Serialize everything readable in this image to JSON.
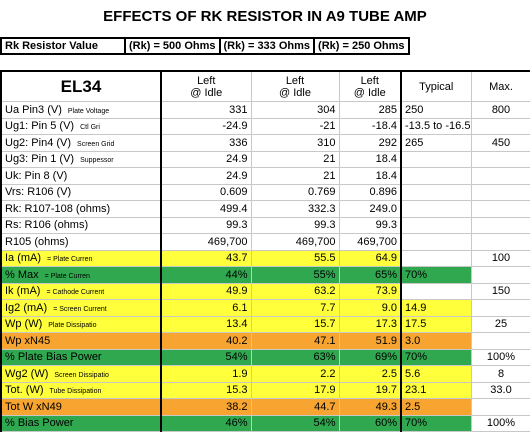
{
  "title": "EFFECTS OF RK RESISTOR IN A9 TUBE AMP",
  "summary": {
    "label": "Rk Resistor Value",
    "values": [
      "(Rk) = 500 Ohms",
      "(Rk) = 333 Ohms",
      "(Rk) = 250 Ohms"
    ]
  },
  "table": {
    "header": {
      "tube": "EL34",
      "columns": [
        [
          "Left",
          "@ Idle"
        ],
        [
          "Left",
          "@ Idle"
        ],
        [
          "Left",
          "@ Idle"
        ]
      ],
      "typical": "Typical",
      "max": "Max."
    },
    "rows": [
      {
        "label": "Ua Pin3 (V)",
        "note": "Plate Voltage",
        "values": [
          "331",
          "304",
          "285"
        ],
        "typical": "250",
        "max": "800"
      },
      {
        "label": "Ug1: Pin 5 (V)",
        "note": "Ctl Gri",
        "values": [
          "-24.9",
          "-21",
          "-18.4"
        ],
        "typical": "-13.5 to -16.5"
      },
      {
        "label": "Ug2: Pin4 (V)",
        "note": "Screen Grid",
        "values": [
          "336",
          "310",
          "292"
        ],
        "typical": "265",
        "max": "450"
      },
      {
        "label": "Ug3: Pin 1 (V)",
        "note": "Suppessor",
        "values": [
          "24.9",
          "21",
          "18.4"
        ]
      },
      {
        "label": "Uk: Pin 8 (V)",
        "values": [
          "24.9",
          "21",
          "18.4"
        ]
      },
      {
        "label": "Vrs: R106 (V)",
        "values": [
          "0.609",
          "0.769",
          "0.896"
        ]
      },
      {
        "label": "Rk: R107-108 (ohms)",
        "values": [
          "499.4",
          "332.3",
          "249.0"
        ]
      },
      {
        "label": "Rs: R106 (ohms)",
        "values": [
          "99.3",
          "99.3",
          "99.3"
        ]
      },
      {
        "label": "R105 (ohms)",
        "values": [
          "469,700",
          "469,700",
          "469,700"
        ]
      },
      {
        "label": "Ia (mA)",
        "note": "= Plate Curren",
        "values": [
          "43.7",
          "55.5",
          "64.9"
        ],
        "max": "100",
        "color": "#ffff3c"
      },
      {
        "label": "% Max",
        "note": "= Plate Curren",
        "values": [
          "44%",
          "55%",
          "65%"
        ],
        "typical": "70%",
        "color": "#2fa84f"
      },
      {
        "label": "Ik (mA)",
        "note": "= Cathode Current",
        "values": [
          "49.9",
          "63.2",
          "73.9"
        ],
        "max": "150",
        "color": "#ffff3c"
      },
      {
        "label": "Ig2 (mA)",
        "note": "= Screen Current",
        "values": [
          "6.1",
          "7.7",
          "9.0"
        ],
        "typical": "14.9",
        "color": "#ffff3c"
      },
      {
        "label": "Wp (W)",
        "note": "Plate Dissipatio",
        "values": [
          "13.4",
          "15.7",
          "17.3"
        ],
        "typical": "17.5",
        "max": "25",
        "color": "#ffff3c"
      },
      {
        "label": "Wp xN45",
        "values": [
          "40.2",
          "47.1",
          "51.9"
        ],
        "typical": "3.0",
        "color": "#f7a530"
      },
      {
        "label": "% Plate Bias Power",
        "values": [
          "54%",
          "63%",
          "69%"
        ],
        "typical": "70%",
        "max": "100%",
        "color": "#2fa84f"
      },
      {
        "label": "Wg2 (W)",
        "note": "Screen Dissipatio",
        "values": [
          "1.9",
          "2.2",
          "2.5"
        ],
        "typical": "5.6",
        "max": "8",
        "color": "#ffff3c"
      },
      {
        "label": "Tot. (W)",
        "note": "Tube Dissipation",
        "values": [
          "15.3",
          "17.9",
          "19.7"
        ],
        "typical": "23.1",
        "max": "33.0",
        "color": "#ffff3c"
      },
      {
        "label": "Tot W xN49",
        "values": [
          "38.2",
          "44.7",
          "49.3"
        ],
        "typical": "2.5",
        "color": "#f7a530"
      },
      {
        "label": "% Bias Power",
        "values": [
          "46%",
          "54%",
          "60%"
        ],
        "typical": "70%",
        "max": "100%",
        "color": "#2fa84f"
      }
    ]
  }
}
